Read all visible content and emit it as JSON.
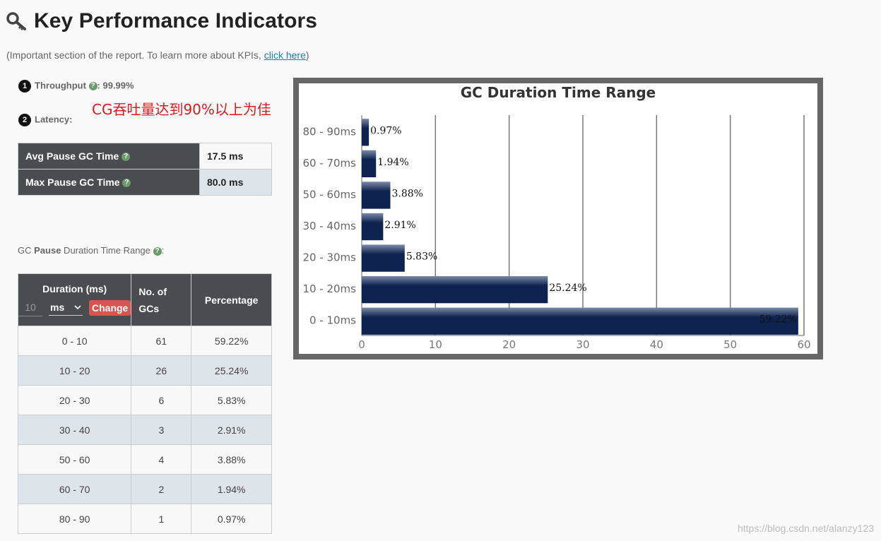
{
  "header": {
    "title": "Key Performance Indicators",
    "subtitle_prefix": "(Important section of the report. To learn more about KPIs, ",
    "subtitle_link": "click here",
    "subtitle_suffix": ")"
  },
  "kpi": {
    "throughput_num": "1",
    "throughput_label": "Throughput",
    "throughput_value": ": 99.99%",
    "latency_num": "2",
    "latency_label": "Latency:",
    "help_glyph": "?"
  },
  "annotation": "CG吞吐量达到90%以上为佳",
  "pause_table": {
    "rows": [
      {
        "label": "Avg Pause GC Time",
        "value": "17.5 ms"
      },
      {
        "label": "Max Pause GC Time",
        "value": "80.0 ms"
      }
    ]
  },
  "range_label": {
    "prefix": "GC ",
    "bold": "Pause",
    "suffix": " Duration Time Range"
  },
  "duration_table": {
    "headers": {
      "duration": "Duration (ms)",
      "count": "No. of GCs",
      "percentage": "Percentage"
    },
    "controls": {
      "input_value": "10",
      "unit": "ms",
      "button": "Change"
    },
    "rows": [
      {
        "range": "0 - 10",
        "count": "61",
        "pct": "59.22%"
      },
      {
        "range": "10 - 20",
        "count": "26",
        "pct": "25.24%"
      },
      {
        "range": "20 - 30",
        "count": "6",
        "pct": "5.83%"
      },
      {
        "range": "30 - 40",
        "count": "3",
        "pct": "2.91%"
      },
      {
        "range": "50 - 60",
        "count": "4",
        "pct": "3.88%"
      },
      {
        "range": "60 - 70",
        "count": "2",
        "pct": "1.94%"
      },
      {
        "range": "80 - 90",
        "count": "1",
        "pct": "0.97%"
      }
    ]
  },
  "chart_data": {
    "type": "bar",
    "orientation": "horizontal",
    "title": "GC Duration Time Range",
    "categories": [
      "0 - 10ms",
      "10 - 20ms",
      "20 - 30ms",
      "30 - 40ms",
      "50 - 60ms",
      "60 - 70ms",
      "80 - 90ms"
    ],
    "values": [
      59.22,
      25.24,
      5.83,
      2.91,
      3.88,
      1.94,
      0.97
    ],
    "labels": [
      "59.22%",
      "25.24%",
      "5.83%",
      "2.91%",
      "3.88%",
      "1.94%",
      "0.97%"
    ],
    "xlim": [
      0,
      60
    ],
    "xticks": [
      0,
      10,
      20,
      30,
      40,
      50,
      60
    ],
    "grid": true,
    "bar_color": "#0f2350"
  },
  "watermark": "https://blog.csdn.net/alanzy123"
}
